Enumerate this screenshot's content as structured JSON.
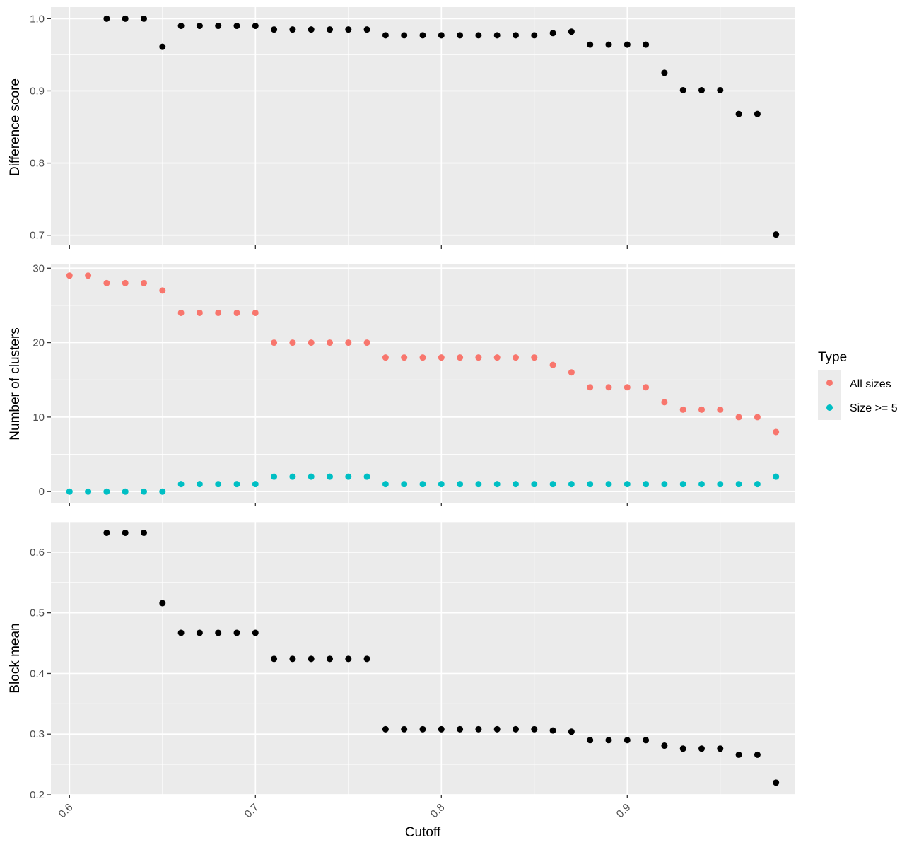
{
  "chart_data": [
    {
      "type": "scatter",
      "ylabel": "Difference score",
      "xlim": [
        0.59,
        0.99
      ],
      "ylim": [
        0.686,
        1.016
      ],
      "yticks": [
        "0.7",
        "0.8",
        "0.9",
        "1.0"
      ],
      "x": [
        0.62,
        0.63,
        0.64,
        0.65,
        0.66,
        0.67,
        0.68,
        0.69,
        0.7,
        0.71,
        0.72,
        0.73,
        0.74,
        0.75,
        0.76,
        0.77,
        0.78,
        0.79,
        0.8,
        0.81,
        0.82,
        0.83,
        0.84,
        0.85,
        0.86,
        0.87,
        0.88,
        0.89,
        0.9,
        0.91,
        0.92,
        0.93,
        0.94,
        0.95,
        0.96,
        0.97,
        0.98
      ],
      "series": [
        {
          "color": "#000000",
          "values": [
            1.0,
            1.0,
            1.0,
            0.961,
            0.99,
            0.99,
            0.99,
            0.99,
            0.99,
            0.985,
            0.985,
            0.985,
            0.985,
            0.985,
            0.985,
            0.977,
            0.977,
            0.977,
            0.977,
            0.977,
            0.977,
            0.977,
            0.977,
            0.977,
            0.98,
            0.982,
            0.964,
            0.964,
            0.964,
            0.964,
            0.925,
            0.901,
            0.901,
            0.901,
            0.868,
            0.868,
            0.701
          ]
        }
      ]
    },
    {
      "type": "scatter",
      "ylabel": "Number of clusters",
      "xlim": [
        0.59,
        0.99
      ],
      "ylim": [
        -1.5,
        30.5
      ],
      "yticks": [
        "0",
        "10",
        "20",
        "30"
      ],
      "x": [
        0.6,
        0.61,
        0.62,
        0.63,
        0.64,
        0.65,
        0.66,
        0.67,
        0.68,
        0.69,
        0.7,
        0.71,
        0.72,
        0.73,
        0.74,
        0.75,
        0.76,
        0.77,
        0.78,
        0.79,
        0.8,
        0.81,
        0.82,
        0.83,
        0.84,
        0.85,
        0.86,
        0.87,
        0.88,
        0.89,
        0.9,
        0.91,
        0.92,
        0.93,
        0.94,
        0.95,
        0.96,
        0.97,
        0.98
      ],
      "series": [
        {
          "name": "All sizes",
          "color": "#F8766D",
          "values": [
            29,
            29,
            28,
            28,
            28,
            27,
            24,
            24,
            24,
            24,
            24,
            20,
            20,
            20,
            20,
            20,
            20,
            18,
            18,
            18,
            18,
            18,
            18,
            18,
            18,
            18,
            17,
            16,
            14,
            14,
            14,
            14,
            12,
            11,
            11,
            11,
            10,
            10,
            8
          ]
        },
        {
          "name": "Size >= 5",
          "color": "#00BFC4",
          "values": [
            0,
            0,
            0,
            0,
            0,
            0,
            1,
            1,
            1,
            1,
            1,
            2,
            2,
            2,
            2,
            2,
            2,
            1,
            1,
            1,
            1,
            1,
            1,
            1,
            1,
            1,
            1,
            1,
            1,
            1,
            1,
            1,
            1,
            1,
            1,
            1,
            1,
            1,
            2
          ]
        }
      ]
    },
    {
      "type": "scatter",
      "ylabel": "Block mean",
      "xlabel": "Cutoff",
      "xlim": [
        0.59,
        0.99
      ],
      "ylim": [
        0.2,
        0.65
      ],
      "yticks": [
        "0.2",
        "0.3",
        "0.4",
        "0.5",
        "0.6"
      ],
      "xticks": [
        "0.6",
        "0.7",
        "0.8",
        "0.9"
      ],
      "x": [
        0.62,
        0.63,
        0.64,
        0.65,
        0.66,
        0.67,
        0.68,
        0.69,
        0.7,
        0.71,
        0.72,
        0.73,
        0.74,
        0.75,
        0.76,
        0.77,
        0.78,
        0.79,
        0.8,
        0.81,
        0.82,
        0.83,
        0.84,
        0.85,
        0.86,
        0.87,
        0.88,
        0.89,
        0.9,
        0.91,
        0.92,
        0.93,
        0.94,
        0.95,
        0.96,
        0.97,
        0.98
      ],
      "series": [
        {
          "color": "#000000",
          "values": [
            0.632,
            0.632,
            0.632,
            0.516,
            0.467,
            0.467,
            0.467,
            0.467,
            0.467,
            0.424,
            0.424,
            0.424,
            0.424,
            0.424,
            0.424,
            0.308,
            0.308,
            0.308,
            0.308,
            0.308,
            0.308,
            0.308,
            0.308,
            0.308,
            0.306,
            0.304,
            0.29,
            0.29,
            0.29,
            0.29,
            0.281,
            0.276,
            0.276,
            0.276,
            0.266,
            0.266,
            0.22
          ]
        }
      ]
    }
  ],
  "legend": {
    "title": "Type",
    "items": [
      {
        "label": "All sizes",
        "color": "#F8766D"
      },
      {
        "label": "Size >= 5",
        "color": "#00BFC4"
      }
    ]
  },
  "colors": {
    "panel_bg": "#EBEBEB",
    "grid": "#FFFFFF",
    "tick_text": "#4D4D4D"
  }
}
